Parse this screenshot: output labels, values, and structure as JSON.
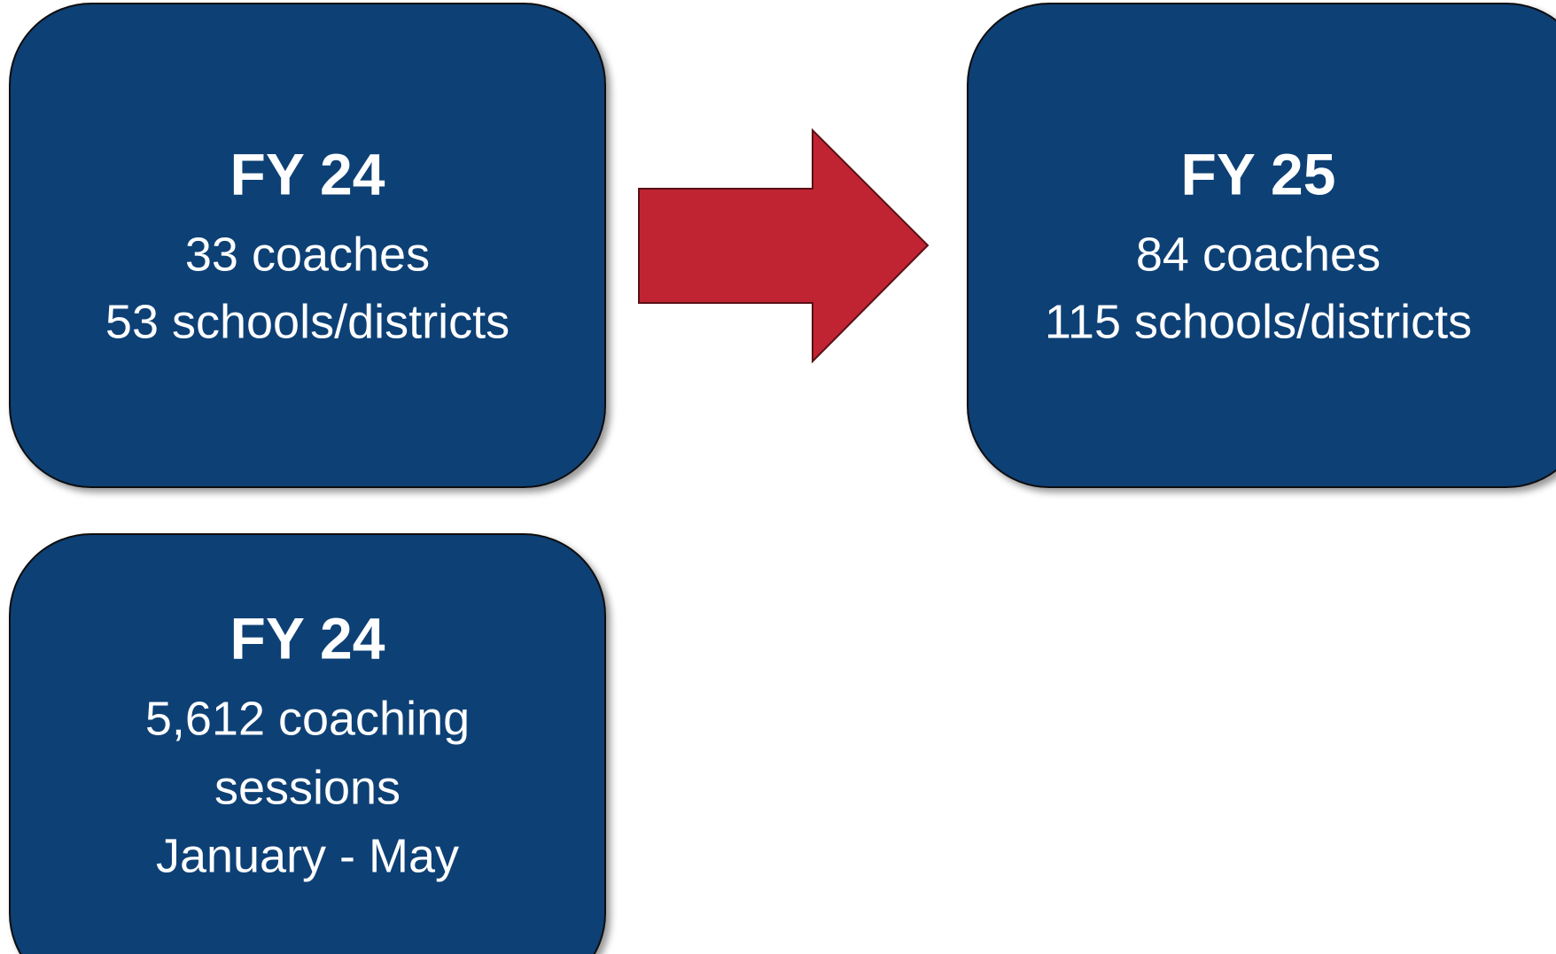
{
  "boxes": [
    {
      "title": "FY 24",
      "lines": [
        "33 coaches",
        "53 schools/districts"
      ]
    },
    {
      "title": "FY 25",
      "lines": [
        "84 coaches",
        "115 schools/districts"
      ]
    },
    {
      "title": "FY 24",
      "lines": [
        "5,612 coaching",
        "sessions",
        "January - May"
      ]
    }
  ]
}
